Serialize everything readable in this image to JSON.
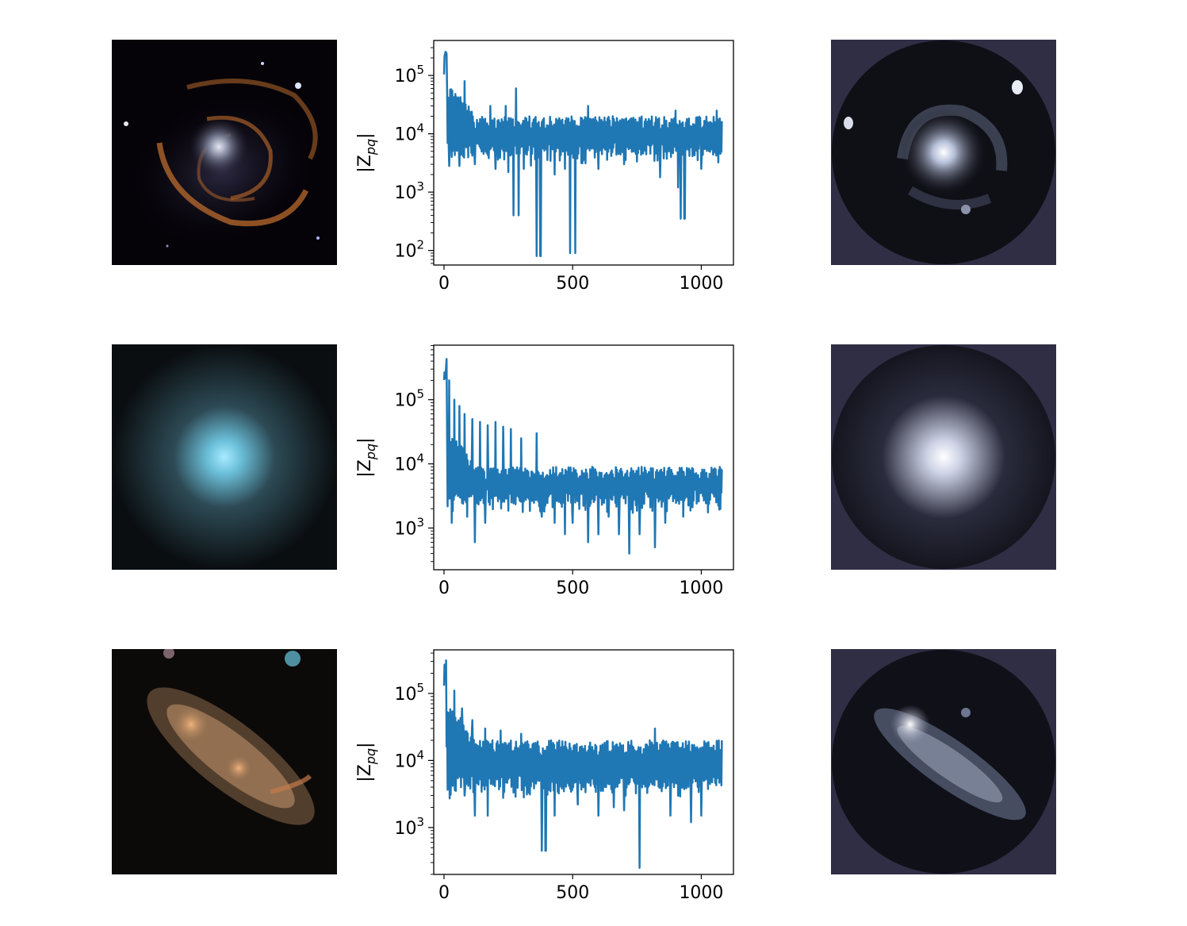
{
  "figure": {
    "background": "#ffffff",
    "line_color": "#1f77b4",
    "recon_background": "#302e45"
  },
  "rows": [
    {
      "galaxy_image": "spiral-galaxy",
      "reconstruction_image": "spiral-reconstruction",
      "galaxy_colors": {
        "bg": "#050308",
        "core": "#c9cdda",
        "arms": "#c7722f"
      }
    },
    {
      "galaxy_image": "elliptical-galaxy",
      "reconstruction_image": "elliptical-reconstruction",
      "galaxy_colors": {
        "bg": "#0a0e10",
        "core": "#8fdcf2",
        "halo": "#2d4a55"
      }
    },
    {
      "galaxy_image": "irregular-galaxy",
      "reconstruction_image": "irregular-reconstruction",
      "galaxy_colors": {
        "bg": "#0c0a08",
        "core": "#e9a26b",
        "body": "#a8805c"
      }
    }
  ],
  "chart_data": [
    {
      "type": "line",
      "title": "",
      "xlabel": "",
      "ylabel": "|Z_pq|",
      "ylabel_base": "|Z",
      "ylabel_sub": "pq",
      "ylabel_end": "|",
      "yscale": "log",
      "xlim": [
        -40,
        1125
      ],
      "ylim_exp": [
        1.75,
        5.6
      ],
      "xticks": [
        0,
        500,
        1000
      ],
      "xtick_labels": [
        "0",
        "500",
        "1000"
      ],
      "yticks_exp": [
        2,
        3,
        4,
        5
      ],
      "ytick_base": "10",
      "ytick_exps": [
        "2",
        "3",
        "4",
        "5"
      ],
      "series": [
        {
          "name": "|Z_pq|",
          "x_range": [
            0,
            1080
          ],
          "envelope": {
            "start_peak": 260000,
            "hi": 20000,
            "lo": 4000,
            "base": 9000
          },
          "dips": [
            [
              20,
              2800
            ],
            [
              30,
              4000
            ],
            [
              60,
              2800
            ],
            [
              120,
              3000
            ],
            [
              200,
              2500
            ],
            [
              250,
              2200
            ],
            [
              270,
              400
            ],
            [
              290,
              400
            ],
            [
              310,
              2500
            ],
            [
              360,
              80
            ],
            [
              375,
              80
            ],
            [
              430,
              2000
            ],
            [
              470,
              2500
            ],
            [
              490,
              90
            ],
            [
              510,
              90
            ],
            [
              600,
              2500
            ],
            [
              700,
              3000
            ],
            [
              840,
              1800
            ],
            [
              910,
              1200
            ],
            [
              920,
              350
            ],
            [
              935,
              350
            ],
            [
              1000,
              2500
            ],
            [
              1060,
              3000
            ]
          ],
          "spikes": [
            [
              80,
              80000
            ],
            [
              180,
              30000
            ],
            [
              240,
              30000
            ],
            [
              280,
              60000
            ],
            [
              560,
              30000
            ],
            [
              900,
              25000
            ],
            [
              1060,
              25000
            ]
          ]
        }
      ]
    },
    {
      "type": "line",
      "title": "",
      "xlabel": "",
      "ylabel": "|Z_pq|",
      "ylabel_base": "|Z",
      "ylabel_sub": "pq",
      "ylabel_end": "|",
      "yscale": "log",
      "xlim": [
        -40,
        1125
      ],
      "ylim_exp": [
        2.35,
        5.85
      ],
      "xticks": [
        0,
        500,
        1000
      ],
      "xtick_labels": [
        "0",
        "500",
        "1000"
      ],
      "yticks_exp": [
        3,
        4,
        5
      ],
      "ytick_base": "10",
      "ytick_exps": [
        "3",
        "4",
        "5"
      ],
      "series": [
        {
          "name": "|Z_pq|",
          "x_range": [
            0,
            1080
          ],
          "envelope": {
            "start_peak": 500000,
            "hi": 9000,
            "lo": 2200,
            "base": 5000
          },
          "dips": [
            [
              30,
              1200
            ],
            [
              90,
              1500
            ],
            [
              110,
              600
            ],
            [
              120,
              600
            ],
            [
              160,
              1200
            ],
            [
              200,
              300
            ],
            [
              260,
              1000
            ],
            [
              300,
              700
            ],
            [
              380,
              1500
            ],
            [
              430,
              1200
            ],
            [
              470,
              800
            ],
            [
              500,
              1200
            ],
            [
              560,
              600
            ],
            [
              600,
              800
            ],
            [
              640,
              1500
            ],
            [
              680,
              800
            ],
            [
              720,
              400
            ],
            [
              760,
              800
            ],
            [
              820,
              500
            ],
            [
              860,
              1200
            ],
            [
              930,
              1500
            ]
          ],
          "spikes": [
            [
              20,
              200000
            ],
            [
              40,
              100000
            ],
            [
              60,
              80000
            ],
            [
              80,
              60000
            ],
            [
              110,
              50000
            ],
            [
              140,
              45000
            ],
            [
              170,
              40000
            ],
            [
              200,
              45000
            ],
            [
              230,
              38000
            ],
            [
              260,
              35000
            ],
            [
              300,
              25000
            ],
            [
              360,
              30000
            ]
          ]
        }
      ]
    },
    {
      "type": "line",
      "title": "",
      "xlabel": "",
      "ylabel": "|Z_pq|",
      "ylabel_base": "|Z",
      "ylabel_sub": "pq",
      "ylabel_end": "|",
      "yscale": "log",
      "xlim": [
        -40,
        1125
      ],
      "ylim_exp": [
        2.3,
        5.65
      ],
      "xticks": [
        0,
        500,
        1000
      ],
      "xtick_labels": [
        "0",
        "500",
        "1000"
      ],
      "yticks_exp": [
        3,
        4,
        5
      ],
      "ytick_base": "10",
      "ytick_exps": [
        "3",
        "4",
        "5"
      ],
      "series": [
        {
          "name": "|Z_pq|",
          "x_range": [
            0,
            1080
          ],
          "envelope": {
            "start_peak": 320000,
            "hi": 20000,
            "lo": 3500,
            "base": 8000
          },
          "dips": [
            [
              10,
              16000
            ],
            [
              30,
              5000
            ],
            [
              80,
              3000
            ],
            [
              120,
              1500
            ],
            [
              170,
              1500
            ],
            [
              220,
              2000
            ],
            [
              300,
              2500
            ],
            [
              380,
              450
            ],
            [
              395,
              450
            ],
            [
              430,
              1500
            ],
            [
              520,
              2200
            ],
            [
              600,
              1500
            ],
            [
              660,
              2000
            ],
            [
              700,
              1800
            ],
            [
              760,
              250
            ],
            [
              820,
              2000
            ],
            [
              880,
              1500
            ],
            [
              960,
              1200
            ],
            [
              1000,
              1500
            ]
          ],
          "spikes": [
            [
              40,
              110000
            ],
            [
              70,
              60000
            ],
            [
              110,
              40000
            ],
            [
              160,
              30000
            ],
            [
              220,
              28000
            ],
            [
              300,
              25000
            ],
            [
              820,
              30000
            ]
          ]
        }
      ]
    }
  ]
}
